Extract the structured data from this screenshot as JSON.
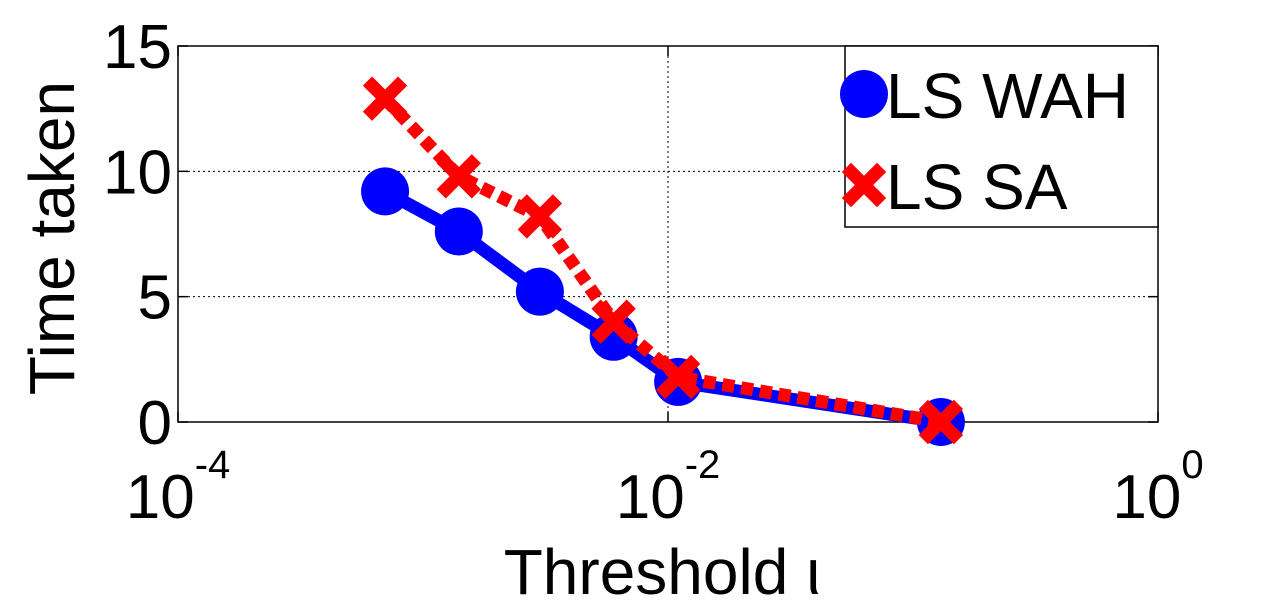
{
  "chart_data": {
    "type": "line",
    "title": "",
    "xlabel": "Threshold ι",
    "ylabel": "Time taken",
    "x_scale": "log",
    "xlim": [
      0.0001,
      1
    ],
    "ylim": [
      0,
      15
    ],
    "x_ticks": [
      {
        "value": 0.0001,
        "base": "10",
        "exp": "-4"
      },
      {
        "value": 0.01,
        "base": "10",
        "exp": "-2"
      },
      {
        "value": 1,
        "base": "10",
        "exp": "0"
      }
    ],
    "y_ticks": [
      {
        "value": 0,
        "label": "0"
      },
      {
        "value": 5,
        "label": "5"
      },
      {
        "value": 10,
        "label": "10"
      },
      {
        "value": 15,
        "label": "15"
      }
    ],
    "grid": true,
    "legend_position": "top-right",
    "series": [
      {
        "name": "LS WAH",
        "color": "#0000ff",
        "line_style": "solid",
        "marker": "circle",
        "x": [
          0.0007,
          0.0014,
          0.003,
          0.006,
          0.011,
          0.13
        ],
        "y": [
          9.2,
          7.6,
          5.2,
          3.4,
          1.6,
          0.0
        ]
      },
      {
        "name": "LS SA",
        "color": "#ff0000",
        "line_style": "dashed",
        "marker": "x",
        "x": [
          0.0007,
          0.0014,
          0.003,
          0.006,
          0.011,
          0.13
        ],
        "y": [
          12.9,
          9.8,
          8.2,
          4.0,
          1.8,
          0.0
        ]
      }
    ]
  }
}
